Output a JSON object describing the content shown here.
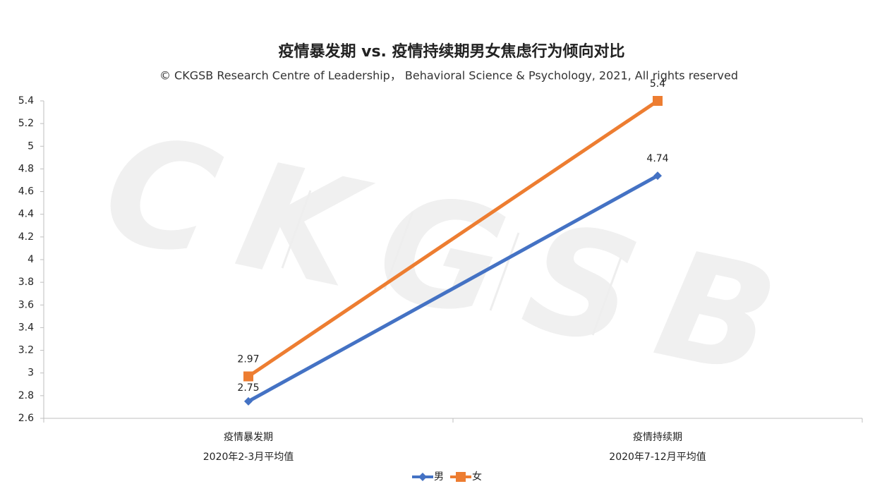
{
  "chart_data": {
    "type": "line",
    "title": "疫情暴发期 vs. 疫情持续期男女焦虑行为倾向对比",
    "subtitle": "© CKGSB Research Centre of Leadership， Behavioral Science & Psychology, 2021, All rights reserved",
    "watermark": "CKGSB",
    "categories": [
      [
        "疫情暴发期",
        "2020年2-3月平均值"
      ],
      [
        "疫情持续期",
        "2020年7-12月平均值"
      ]
    ],
    "series": [
      {
        "name": "男",
        "color": "#4472c4",
        "marker": "diamond",
        "values": [
          2.75,
          4.74
        ]
      },
      {
        "name": "女",
        "color": "#ed7d31",
        "marker": "square",
        "values": [
          2.97,
          5.4
        ]
      }
    ],
    "ylim": [
      2.6,
      5.4
    ],
    "yticks": [
      2.6,
      2.8,
      3,
      3.2,
      3.4,
      3.6,
      3.8,
      4,
      4.2,
      4.4,
      4.6,
      4.8,
      5,
      5.2,
      5.4
    ],
    "grid": false,
    "legend": "bottom"
  }
}
